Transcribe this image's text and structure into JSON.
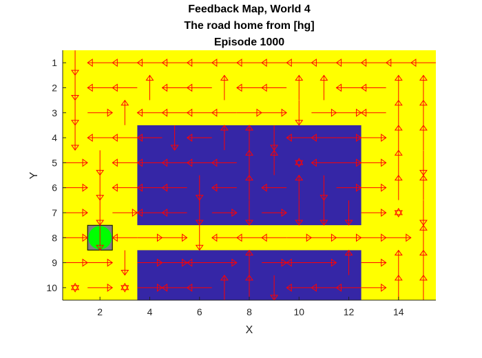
{
  "chart_data": {
    "type": "quiver-grid",
    "title_lines": [
      "Feedback Map, World 4",
      "The road home from [hg]",
      "Episode 1000"
    ],
    "xlabel": "X",
    "ylabel": "Y",
    "xlim": [
      0.5,
      15.5
    ],
    "ylim": [
      0.5,
      10.5
    ],
    "y_reversed": true,
    "xticks": [
      2,
      4,
      6,
      8,
      10,
      12,
      14
    ],
    "yticks": [
      1,
      2,
      3,
      4,
      5,
      6,
      7,
      8,
      9,
      10
    ],
    "grid": false,
    "colors": {
      "background": "#ffff00",
      "obstacle": "#3526a6",
      "arrow": "#ff0000",
      "goal": "#00ff00",
      "goal_box": "#808080"
    },
    "obstacles": [
      {
        "x0": 3.5,
        "x1": 12.5,
        "y0": 3.5,
        "y1": 7.5
      },
      {
        "x0": 3.5,
        "x1": 12.5,
        "y0": 8.5,
        "y1": 10.5
      }
    ],
    "goal": {
      "x": 2,
      "y": 8
    },
    "policy": [
      "DLLLLLLLLLLLLLL",
      "DLLULLULLUULLUU",
      "DRULLLLRRDRRLUU",
      "DLLLDLUUDLLRRUU",
      "RDLLLLLUUSLRRUD",
      "RDLLLDLULUDRRUU",
      "RDRLLDRDRDDDRSD",
      "RDLRRDLLLRRRRRU",
      "RRDRRLRURLRURUU",
      "SRSRLLUUDLLLRUU"
    ]
  }
}
